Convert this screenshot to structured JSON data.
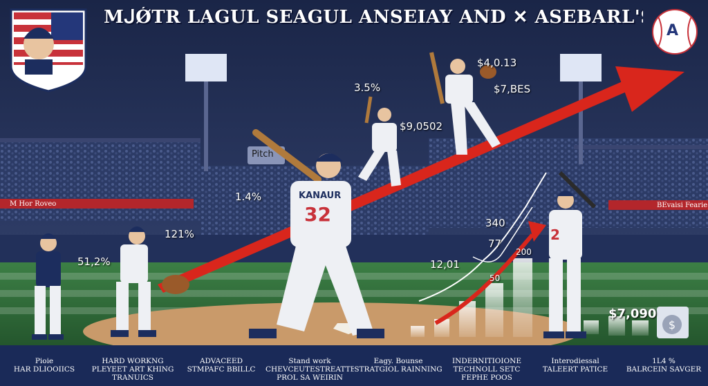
{
  "title": "MᒍǾTR LAGUL SEAGUL ANSEIAY AND ✕ ASEBARL'S",
  "logo": {
    "letter": "A"
  },
  "banners": {
    "left": "M Hor Roveo",
    "right": "BEvaisi Fearie"
  },
  "pitch_sign": "Pitch",
  "jersey": {
    "name": "KANAUR",
    "number": "32",
    "right_number": "2"
  },
  "stats": {
    "s_51": "51,2%",
    "s_121": "121%",
    "s_14": "1.4%",
    "s_35": "3.5%",
    "s_9050": "$9,0502",
    "s_4013": "$4,0.13",
    "s_7bes": "$7,BES",
    "s_340": "340",
    "s_77": "77",
    "s_1201": "12,01",
    "s_200": "200",
    "s_50": "50",
    "s_7090": "$7,090"
  },
  "footer": [
    "Pioie\nHAR DLIOOIICS",
    "HARD WORKNG\nPLEYEET ART KHING\nTRANUICS",
    "ADVACEED\nSTMPAFC BBILLC",
    "Stand work\nCHEVCEUTESTREATTED\nPROL SA WEIRIN",
    "Eagy. Bounse\nSTRATGIOL RAINNING",
    "INDERNITIOIONE\nTECHNOLL SETC\nFEPHE POOS",
    "Interodiessal\nTALEERT PATICE",
    "1L4 %\nBALRCEIN SAVGER"
  ],
  "colors": {
    "sky": "#1f2b50",
    "grass": "#2f6b3a",
    "dirt": "#c99a6a",
    "arrow": "#d9261c",
    "uniform": "#eef0f4",
    "navy": "#1c2d5e",
    "footer_bg": "#1a2a58"
  },
  "icons": [
    "flag-badge-icon",
    "baseball-logo-icon",
    "money-bag-icon",
    "stadium-light-icon",
    "growth-arrow-icon"
  ]
}
